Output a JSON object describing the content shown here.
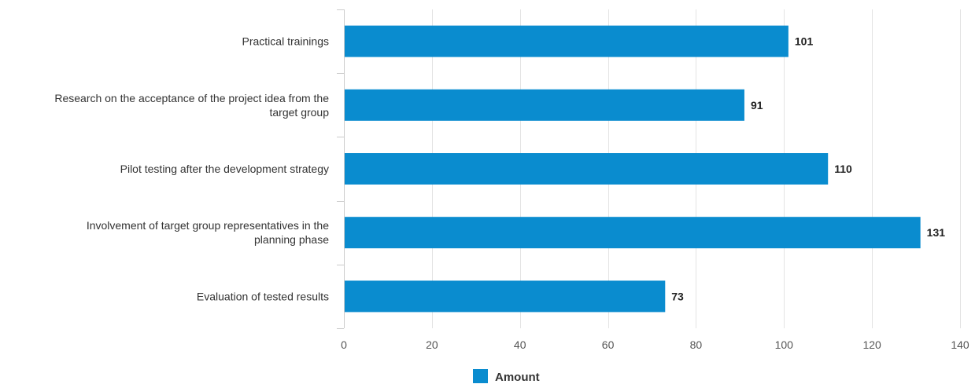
{
  "chart_data": {
    "type": "bar",
    "orientation": "horizontal",
    "categories": [
      "Practical trainings",
      "Research on the acceptance of the project idea from the target group",
      "Pilot testing after the development strategy",
      "Involvement of target group representatives in the planning phase",
      "Evaluation of tested results"
    ],
    "series": [
      {
        "name": "Amount",
        "values": [
          101,
          91,
          110,
          131,
          73
        ],
        "data_labels": [
          "101",
          "91",
          "110",
          "131",
          "73"
        ]
      }
    ],
    "xlim": [
      0,
      140
    ],
    "xticks": [
      0,
      20,
      40,
      60,
      80,
      100,
      120,
      140
    ],
    "xtick_labels": [
      "0",
      "20",
      "40",
      "60",
      "80",
      "100",
      "120",
      "140"
    ],
    "grid": "vertical",
    "legend": "bottom-center",
    "bar_color": "#0a8ccf",
    "gridline_color": "#e3e3e3",
    "axis_color": "#cccccc"
  }
}
